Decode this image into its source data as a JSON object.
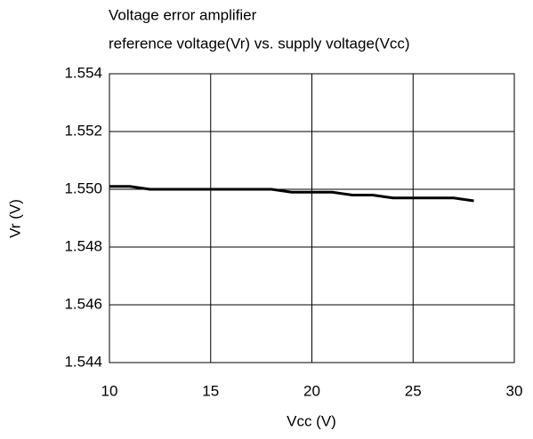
{
  "chart_data": {
    "type": "line",
    "title": [
      "Voltage error amplifier",
      "reference voltage(Vr) vs. supply voltage(Vcc)"
    ],
    "x_label": "Vcc (V)",
    "y_label": "Vr (V)",
    "x": [
      10,
      11,
      12,
      13,
      14,
      15,
      16,
      17,
      18,
      19,
      20,
      21,
      22,
      23,
      24,
      25,
      26,
      27,
      28
    ],
    "series": [
      {
        "color": "#000000",
        "values": [
          1.5501,
          1.5501,
          1.55,
          1.55,
          1.55,
          1.55,
          1.55,
          1.55,
          1.55,
          1.5499,
          1.5499,
          1.5499,
          1.5498,
          1.5498,
          1.5497,
          1.5497,
          1.5497,
          1.5497,
          1.5496
        ]
      }
    ],
    "xlim": [
      10,
      30
    ],
    "xticks": [
      10,
      15,
      20,
      25,
      30
    ],
    "ylim": [
      1.544,
      1.554
    ],
    "yticks": [
      1.544,
      1.546,
      1.548,
      {
        "value": 1.55,
        "label": "1.550"
      },
      1.552,
      1.554
    ],
    "grid": true
  }
}
